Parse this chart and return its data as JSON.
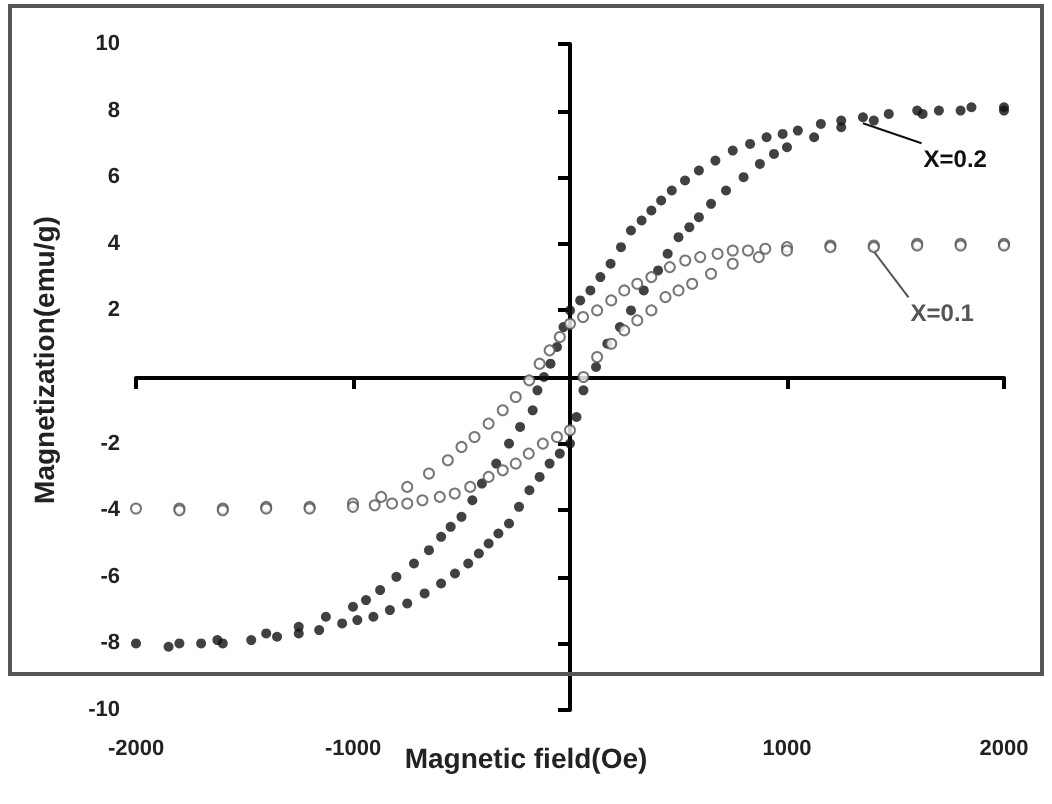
{
  "chart_data": {
    "type": "scatter",
    "xlabel": "Magnetic field(Oe)",
    "ylabel": "Magnetization(emu/g)",
    "xlim": [
      -2000,
      2000
    ],
    "xticks": [
      -2000,
      -1000,
      1000,
      2000
    ],
    "ylim": [
      -10,
      10
    ],
    "yticks": [
      -10,
      -8,
      -6,
      -4,
      -2,
      2,
      4,
      6,
      8,
      10
    ],
    "grid": false,
    "legend": "right",
    "marker": "circle",
    "series": [
      {
        "name": "X=0.2",
        "color": "#111111",
        "x": [
          2000,
          1850,
          1700,
          1600,
          1469,
          1350,
          1250,
          1156,
          1050,
          980,
          906,
          830,
          750,
          670,
          594,
          530,
          469,
          420,
          375,
          330,
          281,
          235,
          187,
          140,
          94,
          47,
          0,
          -30,
          -60,
          -90,
          -120,
          -150,
          -172,
          -230,
          -281,
          -340,
          -406,
          -450,
          -500,
          -550,
          -594,
          -650,
          -719,
          -800,
          -875,
          -940,
          -1000,
          -1125,
          -1250,
          -1400,
          -1625,
          -1800,
          -2000,
          -1850,
          -1700,
          -1600,
          -1469,
          -1350,
          -1250,
          -1156,
          -1050,
          -980,
          -906,
          -830,
          -750,
          -670,
          -594,
          -530,
          -469,
          -420,
          -375,
          -330,
          -281,
          -235,
          -187,
          -140,
          -94,
          -47,
          0,
          30,
          62,
          120,
          172,
          230,
          281,
          340,
          406,
          450,
          500,
          550,
          594,
          650,
          719,
          800,
          875,
          940,
          1000,
          1125,
          1250,
          1400,
          1625,
          1800,
          2000
        ],
        "values": [
          8.1,
          8.1,
          8.0,
          8.0,
          7.9,
          7.8,
          7.7,
          7.6,
          7.4,
          7.3,
          7.2,
          7.0,
          6.8,
          6.5,
          6.2,
          5.9,
          5.6,
          5.3,
          5.0,
          4.7,
          4.4,
          3.9,
          3.4,
          3.0,
          2.6,
          2.3,
          2.0,
          1.5,
          0.9,
          0.4,
          0,
          -0.4,
          -1.0,
          -1.5,
          -2.0,
          -2.6,
          -3.2,
          -3.7,
          -4.2,
          -4.5,
          -4.8,
          -5.2,
          -5.6,
          -6.0,
          -6.4,
          -6.7,
          -6.9,
          -7.2,
          -7.5,
          -7.7,
          -7.9,
          -8.0,
          -8.0,
          -8.1,
          -8.0,
          -8.0,
          -7.9,
          -7.8,
          -7.7,
          -7.6,
          -7.4,
          -7.3,
          -7.2,
          -7.0,
          -6.8,
          -6.5,
          -6.2,
          -5.9,
          -5.6,
          -5.3,
          -5.0,
          -4.7,
          -4.4,
          -3.9,
          -3.4,
          -3.0,
          -2.6,
          -2.3,
          -2.0,
          -1.2,
          -0.4,
          0.3,
          1.0,
          1.5,
          2.0,
          2.6,
          3.2,
          3.7,
          4.2,
          4.5,
          4.8,
          5.2,
          5.6,
          6.0,
          6.4,
          6.7,
          6.9,
          7.2,
          7.5,
          7.7,
          7.9,
          8.0,
          8.0
        ]
      },
      {
        "name": "X=0.1",
        "color": "#555555",
        "x": [
          2000,
          1800,
          1600,
          1400,
          1200,
          1000,
          900,
          820,
          750,
          680,
          600,
          531,
          460,
          375,
          310,
          250,
          190,
          125,
          60,
          0,
          -47,
          -94,
          -140,
          -188,
          -250,
          -310,
          -375,
          -440,
          -500,
          -563,
          -650,
          -750,
          -870,
          -1000,
          -1200,
          -1400,
          -1600,
          -1800,
          -2000,
          -1800,
          -1600,
          -1400,
          -1200,
          -1000,
          -900,
          -820,
          -750,
          -680,
          -600,
          -531,
          -460,
          -375,
          -310,
          -250,
          -190,
          -125,
          -60,
          0,
          62,
          125,
          190,
          250,
          310,
          375,
          440,
          500,
          563,
          650,
          750,
          870,
          1000,
          1200,
          1400,
          1600,
          1800,
          2000
        ],
        "values": [
          4.0,
          4.0,
          4.0,
          3.95,
          3.95,
          3.9,
          3.85,
          3.8,
          3.8,
          3.7,
          3.6,
          3.5,
          3.3,
          3.0,
          2.8,
          2.6,
          2.3,
          2.0,
          1.8,
          1.6,
          1.2,
          0.8,
          0.4,
          -0.1,
          -0.6,
          -1.0,
          -1.4,
          -1.8,
          -2.1,
          -2.5,
          -2.9,
          -3.3,
          -3.6,
          -3.8,
          -3.9,
          -3.9,
          -3.95,
          -3.95,
          -3.95,
          -4.0,
          -4.0,
          -3.95,
          -3.95,
          -3.9,
          -3.85,
          -3.8,
          -3.8,
          -3.7,
          -3.6,
          -3.5,
          -3.3,
          -3.0,
          -2.8,
          -2.6,
          -2.3,
          -2.0,
          -1.8,
          -1.6,
          0,
          0.6,
          1.0,
          1.4,
          1.7,
          2.0,
          2.4,
          2.6,
          2.8,
          3.1,
          3.4,
          3.6,
          3.8,
          3.9,
          3.9,
          3.95,
          3.95,
          3.95
        ]
      }
    ]
  }
}
